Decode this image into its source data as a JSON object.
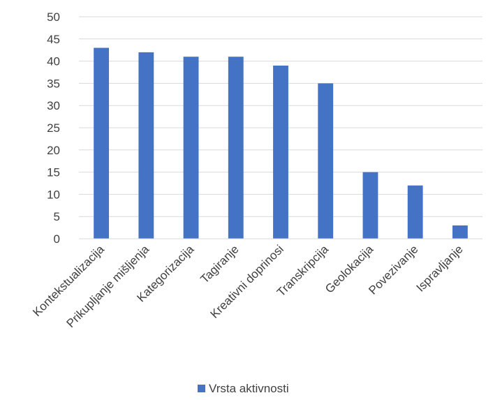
{
  "chart_data": {
    "type": "bar",
    "categories": [
      "Kontekstualizacija",
      "Prikupljanje mišljenja",
      "Kategorizacija",
      "Tagiranje",
      "Kreativni doprinosi",
      "Transkripcija",
      "Geolokacija",
      "Povezivanje",
      "Ispravljanje"
    ],
    "series": [
      {
        "name": "Vrsta aktivnosti",
        "values": [
          43,
          42,
          41,
          41,
          39,
          35,
          15,
          12,
          3
        ],
        "color": "#4472C4"
      }
    ],
    "yticks": [
      "0",
      "5",
      "10",
      "15",
      "20",
      "25",
      "30",
      "35",
      "40",
      "45",
      "50"
    ],
    "ylim": [
      0,
      50
    ],
    "grid": true,
    "legend": "bottom-center"
  }
}
